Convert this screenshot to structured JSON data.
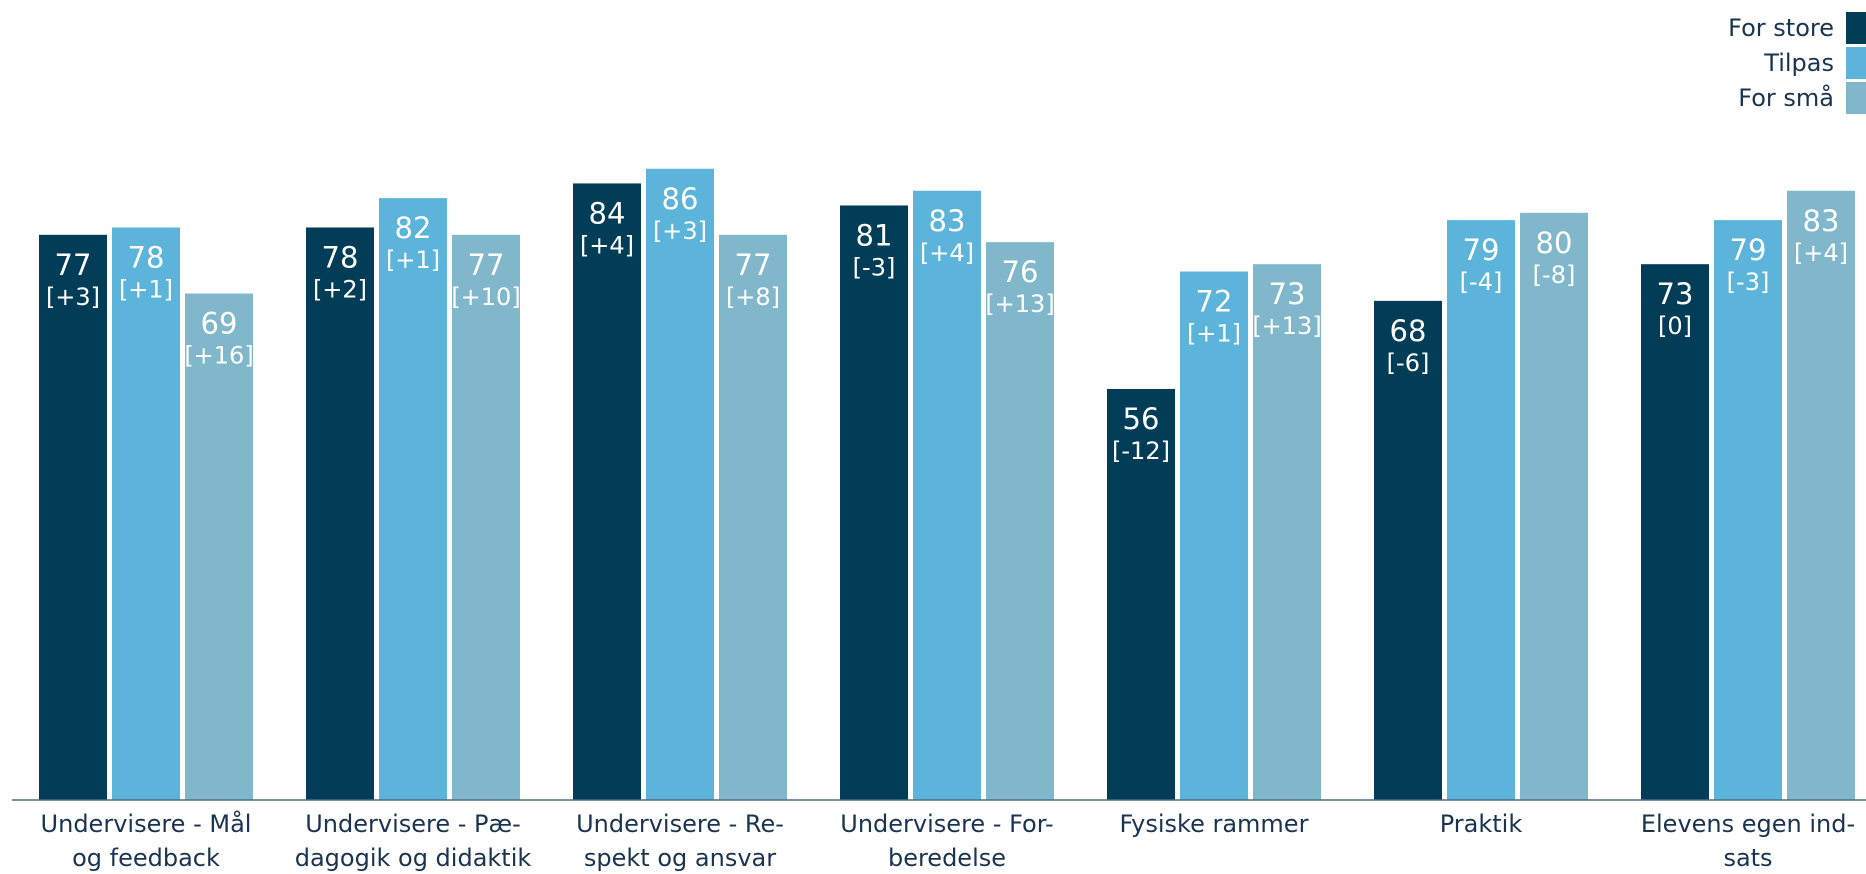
{
  "chart_data": {
    "type": "bar",
    "categories": [
      [
        "Undervisere - Mål",
        "og feedback"
      ],
      [
        "Undervisere - Pæ-",
        "dagogik og didaktik"
      ],
      [
        "Undervisere - Re-",
        "spekt og ansvar"
      ],
      [
        "Undervisere - For-",
        "beredelse"
      ],
      [
        "Fysiske rammer"
      ],
      [
        "Praktik"
      ],
      [
        "Elevens egen ind-",
        "sats"
      ]
    ],
    "series": [
      {
        "name": "For store",
        "color": "#023d58",
        "values": [
          77,
          78,
          84,
          81,
          56,
          68,
          73
        ],
        "deltas": [
          "[+3]",
          "[+2]",
          "[+4]",
          "[-3]",
          "[-12]",
          "[-6]",
          "[0]"
        ]
      },
      {
        "name": "Tilpas",
        "color": "#5cb4db",
        "values": [
          78,
          82,
          86,
          83,
          72,
          79,
          79
        ],
        "deltas": [
          "[+1]",
          "[+1]",
          "[+3]",
          "[+4]",
          "[+1]",
          "[-4]",
          "[-3]"
        ]
      },
      {
        "name": "For små",
        "color": "#80b7cb",
        "values": [
          69,
          77,
          77,
          76,
          73,
          80,
          83
        ],
        "deltas": [
          "[+16]",
          "[+10]",
          "[+8]",
          "[+13]",
          "[+13]",
          "[-8]",
          "[+4]"
        ]
      }
    ],
    "ylim": [
      0,
      100
    ],
    "grid": false,
    "legend_position": "top-right",
    "axis_color": "#4f6b8a"
  }
}
